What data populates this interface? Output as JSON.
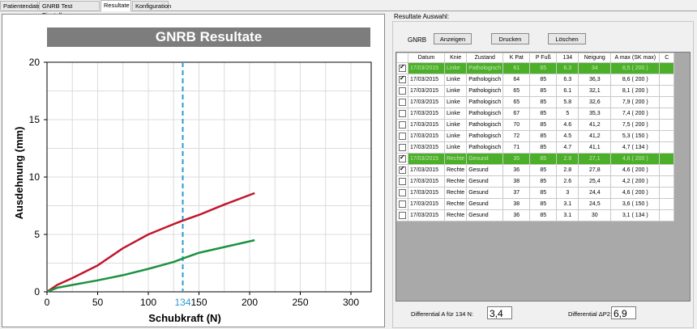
{
  "tabs": [
    {
      "label": "Patientendatei",
      "active": false
    },
    {
      "label": "GNRB Test Einstellung",
      "active": false
    },
    {
      "label": "Resultate",
      "active": true
    },
    {
      "label": "Konfiguration",
      "active": false
    }
  ],
  "chart": {
    "marker_label": "134"
  },
  "chart_data": {
    "type": "line",
    "title": "GNRB Resultate",
    "xlabel": "Schubkraft (N)",
    "ylabel": "Ausdehnung (mm)",
    "xlim": [
      0,
      320
    ],
    "ylim": [
      0,
      20
    ],
    "xticks": [
      0,
      50,
      100,
      150,
      200,
      250,
      300
    ],
    "yticks": [
      0,
      5,
      10,
      15,
      20
    ],
    "vline_x": 134,
    "grid": true,
    "series": [
      {
        "color": "#c0172d",
        "x": [
          0,
          10,
          25,
          50,
          75,
          100,
          125,
          134,
          150,
          175,
          205
        ],
        "y": [
          0,
          0.6,
          1.2,
          2.3,
          3.8,
          5.0,
          5.9,
          6.2,
          6.7,
          7.6,
          8.6
        ]
      },
      {
        "color": "#1e9141",
        "x": [
          0,
          10,
          25,
          50,
          75,
          100,
          125,
          134,
          150,
          175,
          205
        ],
        "y": [
          0,
          0.35,
          0.6,
          1.0,
          1.45,
          2.0,
          2.6,
          2.9,
          3.4,
          3.9,
          4.5
        ]
      }
    ]
  },
  "results": {
    "section_label": "Resultate Auswahl:",
    "gnrb_label": "GNRB",
    "buttons": {
      "show": "Anzeigen",
      "print": "Drucken",
      "delete": "Löschen"
    },
    "columns": [
      "",
      "Datum",
      "Knie",
      "Zustand",
      "K Pat",
      "P Fuß",
      "134",
      "Neigung",
      "A max (SK max)",
      "C"
    ],
    "rows": [
      {
        "checked": true,
        "hl": true,
        "cells": [
          "17/03/2015",
          "Linke",
          "Pathologisch",
          "61",
          "85",
          "6.3",
          "34",
          "8,5  ( 200 )",
          ""
        ]
      },
      {
        "checked": true,
        "hl": false,
        "cells": [
          "17/03/2015",
          "Linke",
          "Pathologisch",
          "64",
          "85",
          "6.3",
          "36,3",
          "8,6  ( 200 )",
          ""
        ]
      },
      {
        "checked": false,
        "hl": false,
        "cells": [
          "17/03/2015",
          "Linke",
          "Pathologisch",
          "65",
          "85",
          "6.1",
          "32,1",
          "8,1  ( 200 )",
          ""
        ]
      },
      {
        "checked": false,
        "hl": false,
        "cells": [
          "17/03/2015",
          "Linke",
          "Pathologisch",
          "65",
          "85",
          "5.8",
          "32,6",
          "7,9  ( 200 )",
          ""
        ]
      },
      {
        "checked": false,
        "hl": false,
        "cells": [
          "17/03/2015",
          "Linke",
          "Pathologisch",
          "67",
          "85",
          "5",
          "35,3",
          "7,4  ( 200 )",
          ""
        ]
      },
      {
        "checked": false,
        "hl": false,
        "cells": [
          "17/03/2015",
          "Linke",
          "Pathologisch",
          "70",
          "85",
          "4.6",
          "41,2",
          "7,5  ( 200 )",
          ""
        ]
      },
      {
        "checked": false,
        "hl": false,
        "cells": [
          "17/03/2015",
          "Linke",
          "Pathologisch",
          "72",
          "85",
          "4.5",
          "41,2",
          "5,3  ( 150 )",
          ""
        ]
      },
      {
        "checked": false,
        "hl": false,
        "cells": [
          "17/03/2015",
          "Linke",
          "Pathologisch",
          "71",
          "85",
          "4.7",
          "41,1",
          "4,7  ( 134 )",
          ""
        ]
      },
      {
        "checked": true,
        "hl": true,
        "cells": [
          "17/03/2015",
          "Rechte",
          "Gesund",
          "35",
          "85",
          "2.9",
          "27,1",
          "4,6  ( 200 )",
          ""
        ]
      },
      {
        "checked": true,
        "hl": false,
        "cells": [
          "17/03/2015",
          "Rechte",
          "Gesund",
          "36",
          "85",
          "2.8",
          "27,8",
          "4,6  ( 200 )",
          ""
        ]
      },
      {
        "checked": false,
        "hl": false,
        "cells": [
          "17/03/2015",
          "Rechte",
          "Gesund",
          "38",
          "85",
          "2.6",
          "25,4",
          "4,2  ( 200 )",
          ""
        ]
      },
      {
        "checked": false,
        "hl": false,
        "cells": [
          "17/03/2015",
          "Rechte",
          "Gesund",
          "37",
          "85",
          "3",
          "24,4",
          "4,6  ( 200 )",
          ""
        ]
      },
      {
        "checked": false,
        "hl": false,
        "cells": [
          "17/03/2015",
          "Rechte",
          "Gesund",
          "38",
          "85",
          "3.1",
          "24,5",
          "3,6  ( 150 )",
          ""
        ]
      },
      {
        "checked": false,
        "hl": false,
        "cells": [
          "17/03/2015",
          "Rechte",
          "Gesund",
          "36",
          "85",
          "3.1",
          "30",
          "3,1  ( 134 )",
          ""
        ]
      }
    ]
  },
  "differentials": {
    "a_label": "Differential A für 134 N:",
    "a_value": "3,4",
    "p2_label": "Differential ΔP2:",
    "p2_value": "6,9"
  }
}
